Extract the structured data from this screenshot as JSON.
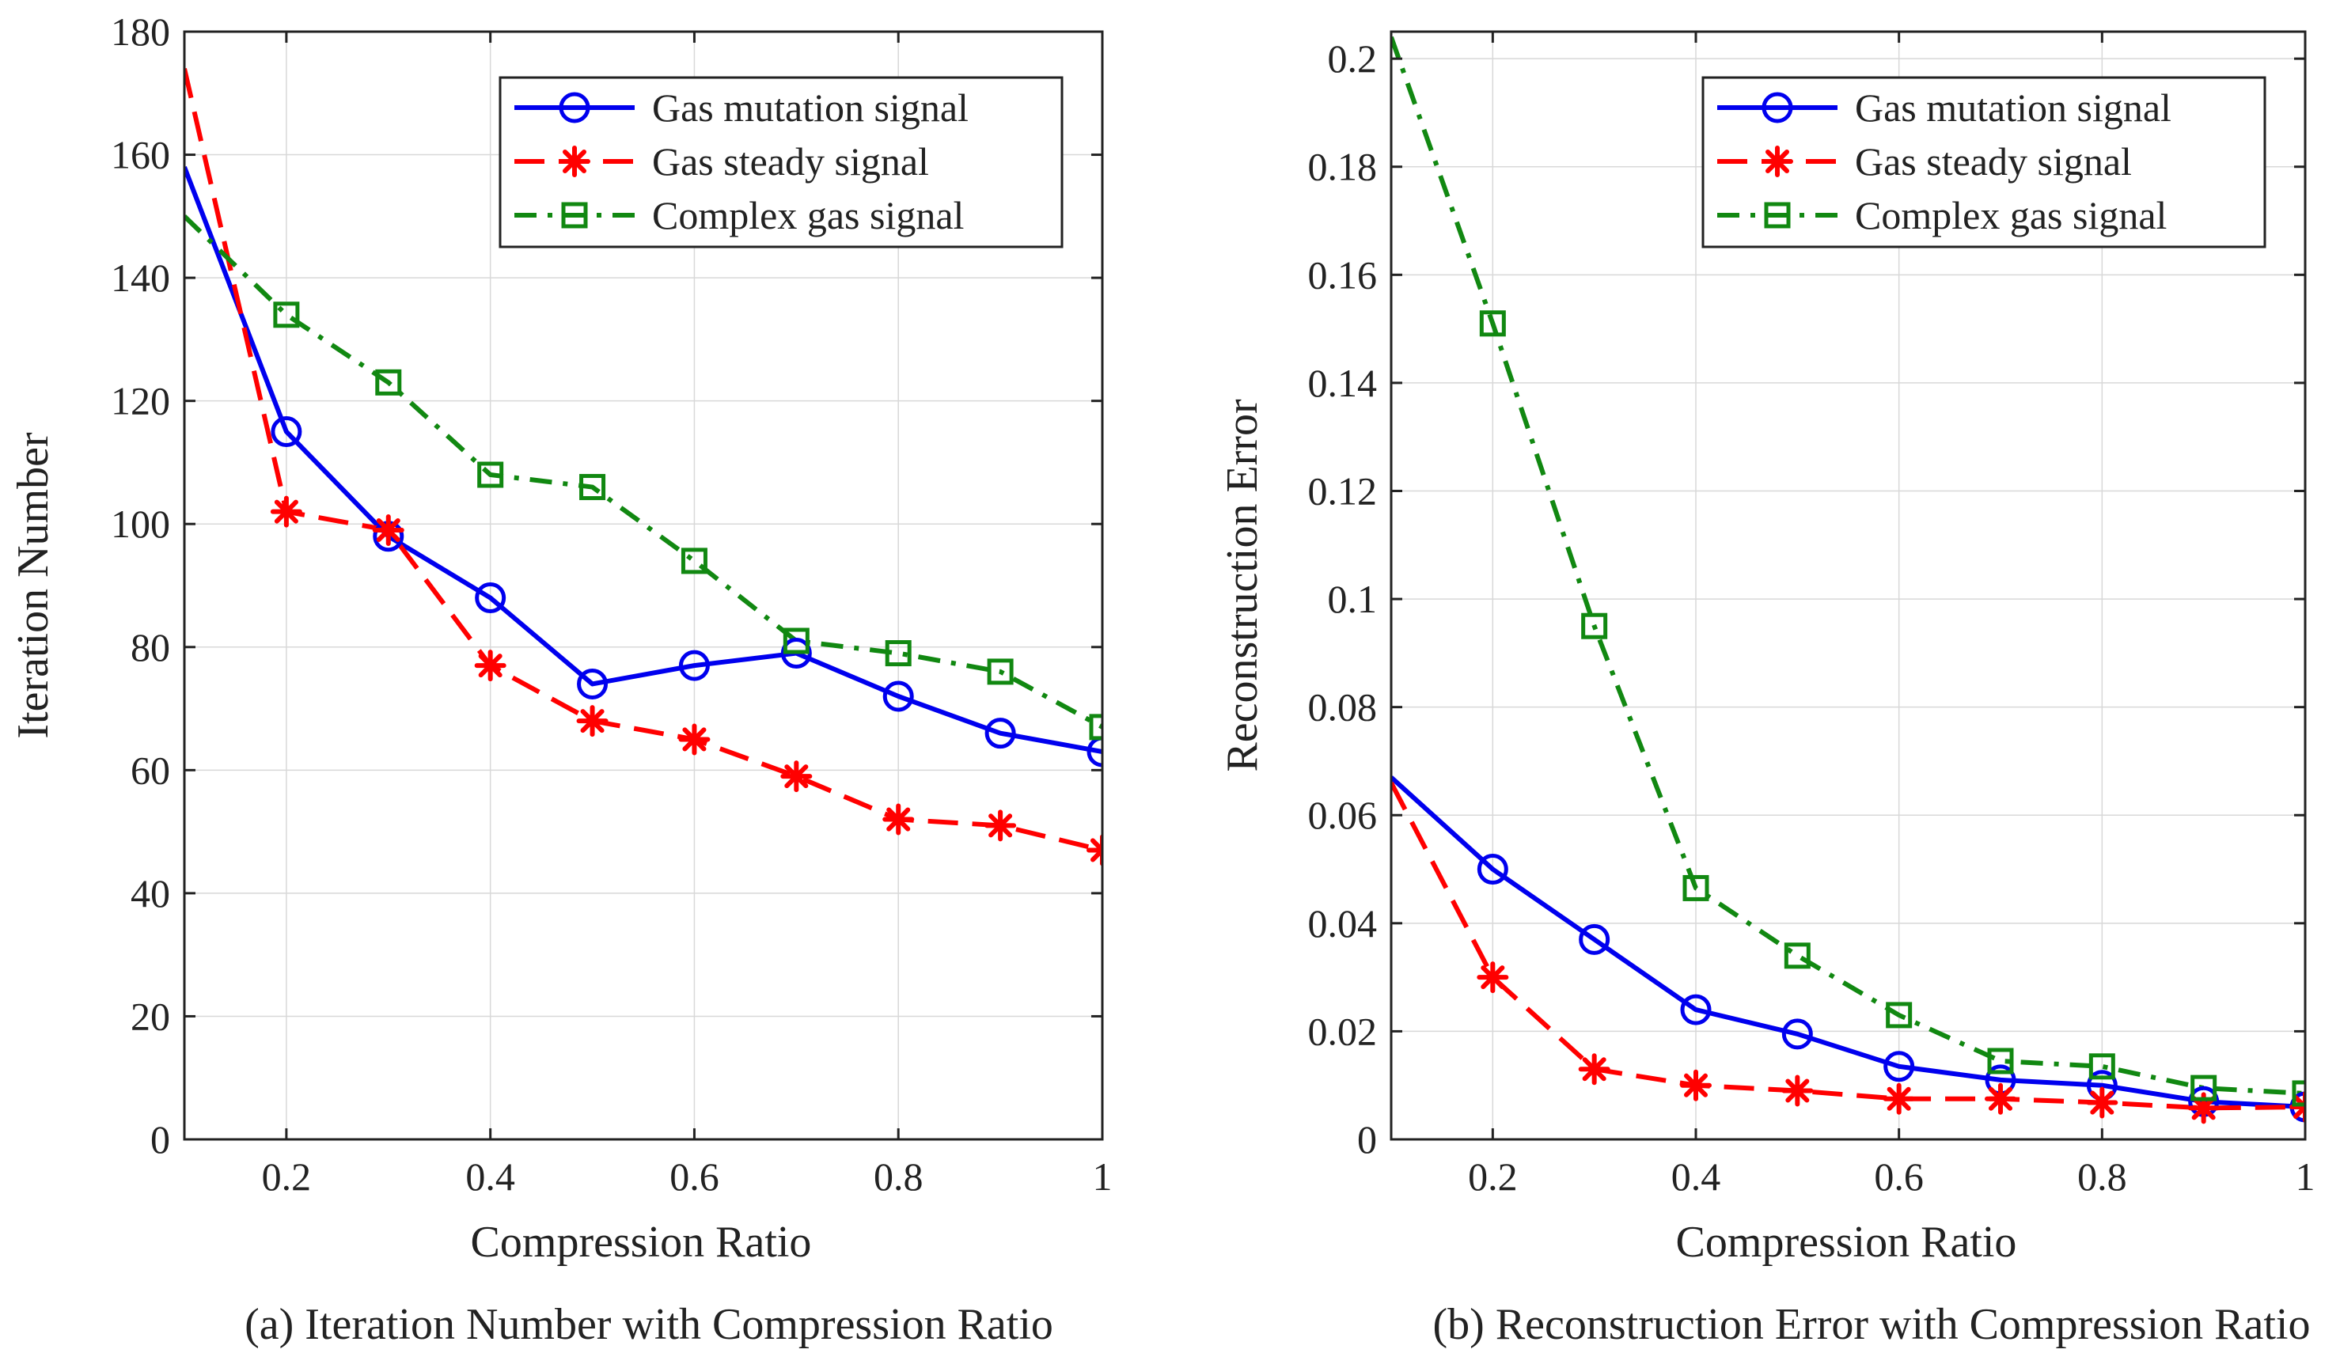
{
  "chart_data": [
    {
      "type": "line",
      "title": "",
      "caption": "(a) Iteration Number with Compression Ratio",
      "xlabel": "Compression Ratio",
      "ylabel": "Iteration Number",
      "xlim": [
        0.1,
        1.0
      ],
      "ylim": [
        0,
        180
      ],
      "xticks": [
        0.2,
        0.4,
        0.6,
        0.8,
        1.0
      ],
      "xtick_labels": [
        "0.2",
        "0.4",
        "0.6",
        "0.8",
        "1"
      ],
      "yticks": [
        0,
        20,
        40,
        60,
        80,
        100,
        120,
        140,
        160,
        180
      ],
      "ytick_labels": [
        "0",
        "20",
        "40",
        "60",
        "80",
        "100",
        "120",
        "140",
        "160",
        "180"
      ],
      "legend_position": "top-right",
      "series": [
        {
          "name": "Gas mutation signal",
          "color": "#0000ee",
          "style": "solid",
          "marker": "circle",
          "x": [
            0.1,
            0.2,
            0.3,
            0.4,
            0.5,
            0.6,
            0.7,
            0.8,
            0.9,
            1.0
          ],
          "values": [
            158,
            115,
            98,
            88,
            74,
            77,
            79,
            72,
            66,
            63
          ]
        },
        {
          "name": "Gas steady signal",
          "color": "#ff0000",
          "style": "dashed",
          "marker": "star",
          "x": [
            0.1,
            0.2,
            0.3,
            0.4,
            0.5,
            0.6,
            0.7,
            0.8,
            0.9,
            1.0
          ],
          "values": [
            174,
            102,
            99,
            77,
            68,
            65,
            59,
            52,
            51,
            47
          ]
        },
        {
          "name": "Complex gas signal",
          "color": "#118811",
          "style": "dashdot",
          "marker": "square",
          "x": [
            0.1,
            0.2,
            0.3,
            0.4,
            0.5,
            0.6,
            0.7,
            0.8,
            0.9,
            1.0
          ],
          "values": [
            150,
            134,
            123,
            108,
            106,
            94,
            81,
            79,
            76,
            67
          ]
        }
      ]
    },
    {
      "type": "line",
      "title": "",
      "caption": "(b) Reconstruction Error with Compression Ratio",
      "xlabel": "Compression Ratio",
      "ylabel": "Reconstruction Error",
      "xlim": [
        0.1,
        1.0
      ],
      "ylim": [
        0,
        0.205
      ],
      "xticks": [
        0.2,
        0.4,
        0.6,
        0.8,
        1.0
      ],
      "xtick_labels": [
        "0.2",
        "0.4",
        "0.6",
        "0.8",
        "1"
      ],
      "yticks": [
        0,
        0.02,
        0.04,
        0.06,
        0.08,
        0.1,
        0.12,
        0.14,
        0.16,
        0.18,
        0.2
      ],
      "ytick_labels": [
        "0",
        "0.02",
        "0.04",
        "0.06",
        "0.08",
        "0.1",
        "0.12",
        "0.14",
        "0.16",
        "0.18",
        "0.2"
      ],
      "legend_position": "top-right",
      "series": [
        {
          "name": "Gas mutation signal",
          "color": "#0000ee",
          "style": "solid",
          "marker": "circle",
          "x": [
            0.1,
            0.2,
            0.3,
            0.4,
            0.5,
            0.6,
            0.7,
            0.8,
            0.9,
            1.0
          ],
          "values": [
            0.067,
            0.05,
            0.037,
            0.024,
            0.0195,
            0.0135,
            0.011,
            0.01,
            0.007,
            0.006
          ]
        },
        {
          "name": "Gas steady signal",
          "color": "#ff0000",
          "style": "dashed",
          "marker": "star",
          "x": [
            0.1,
            0.2,
            0.3,
            0.4,
            0.5,
            0.6,
            0.7,
            0.8,
            0.9,
            1.0
          ],
          "values": [
            0.066,
            0.03,
            0.013,
            0.01,
            0.009,
            0.0075,
            0.0075,
            0.0068,
            0.0058,
            0.006
          ]
        },
        {
          "name": "Complex gas signal",
          "color": "#118811",
          "style": "dashdot",
          "marker": "square",
          "x": [
            0.1,
            0.2,
            0.3,
            0.4,
            0.5,
            0.6,
            0.7,
            0.8,
            0.9,
            1.0
          ],
          "values": [
            0.204,
            0.151,
            0.095,
            0.0465,
            0.034,
            0.023,
            0.0145,
            0.0135,
            0.0095,
            0.0085
          ]
        }
      ]
    }
  ]
}
